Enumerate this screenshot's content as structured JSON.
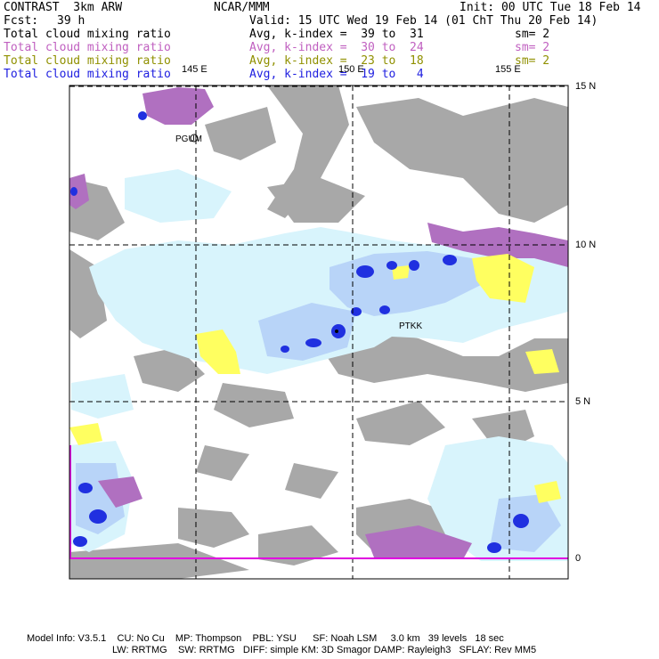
{
  "header": {
    "model": "CONTRAST  3km ARW",
    "org": "NCAR/MMM",
    "init": "Init: 00 UTC Tue 18 Feb 14",
    "fcst_label": "Fcst:",
    "fcst_value": "39 h",
    "valid": "Valid: 15 UTC Wed 19 Feb 14 (01 ChT Thu 20 Feb 14)"
  },
  "legend": [
    {
      "field": "Total cloud mixing ratio",
      "range": "Avg, k-index =  39 to  31",
      "sm": "sm= 2",
      "color": "#000000"
    },
    {
      "field": "Total cloud mixing ratio",
      "range": "Avg, k-index =  30 to  24",
      "sm": "sm= 2",
      "color": "#c060c0"
    },
    {
      "field": "Total cloud mixing ratio",
      "range": "Avg, k-index =  23 to  18",
      "sm": "sm= 2",
      "color": "#909000"
    },
    {
      "field": "Total cloud mixing ratio",
      "range": "Avg, k-index =  19 to   4",
      "sm": "",
      "color": "#2020e0"
    }
  ],
  "map": {
    "lon_labels": [
      "145 E",
      "150 E",
      "155 E"
    ],
    "lat_labels": [
      "15 N",
      "10 N",
      "5 N",
      "0"
    ],
    "stations": [
      "PGUM",
      "PTKK"
    ],
    "colors": {
      "gray": "#a8a8a8",
      "magenta": "#b070c0",
      "yellow": "#ffff60",
      "lightcyan": "#d8f4fc",
      "lightblue": "#b8d4f8",
      "blue": "#2030e0",
      "equator": "#e000e0"
    }
  },
  "footer": {
    "line1": "Model Info: V3.5.1    CU: No Cu    MP: Thompson    PBL: YSU      SF: Noah LSM     3.0 km   39 levels   18 sec",
    "line2": "LW: RRTMG    SW: RRTMG   DIFF: simple KM: 3D Smagor DAMP: Rayleigh3   SFLAY: Rev MM5"
  }
}
